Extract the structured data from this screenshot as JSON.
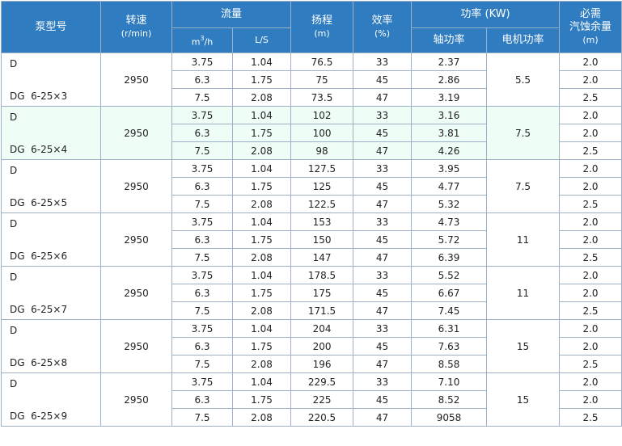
{
  "header": {
    "pump_model": "泵型号",
    "speed": "转速",
    "speed_unit": "(r/min)",
    "flow": "流量",
    "flow_m3h": {
      "base": "m",
      "exp": "3",
      "rest": "/h"
    },
    "flow_ls": "L/S",
    "head": "扬程",
    "head_unit": "(m)",
    "efficiency": "效率",
    "efficiency_unit": "(%)",
    "power": "功率 (KW)",
    "shaft_power": "轴功率",
    "motor_power": "电机功率",
    "npsh_1": "必需",
    "npsh_2": "汽蚀余量",
    "npsh_unit": "(m)"
  },
  "groups": [
    {
      "model_1": "D",
      "model_2": "DG  6-25×3",
      "speed": "2950",
      "motor": "5.5",
      "rows": [
        [
          "3.75",
          "1.04",
          "76.5",
          "33",
          "2.37",
          "2.0"
        ],
        [
          "6.3",
          "1.75",
          "75",
          "45",
          "2.86",
          "2.0"
        ],
        [
          "7.5",
          "2.08",
          "73.5",
          "47",
          "3.19",
          "2.5"
        ]
      ]
    },
    {
      "model_1": "D",
      "model_2": "DG  6-25×4",
      "speed": "2950",
      "motor": "7.5",
      "rows": [
        [
          "3.75",
          "1.04",
          "102",
          "33",
          "3.16",
          "2.0"
        ],
        [
          "6.3",
          "1.75",
          "100",
          "45",
          "3.81",
          "2.0"
        ],
        [
          "7.5",
          "2.08",
          "98",
          "47",
          "4.26",
          "2.5"
        ]
      ]
    },
    {
      "model_1": "D",
      "model_2": "DG  6-25×5",
      "speed": "2950",
      "motor": "7.5",
      "rows": [
        [
          "3.75",
          "1.04",
          "127.5",
          "33",
          "3.95",
          "2.0"
        ],
        [
          "6.3",
          "1.75",
          "125",
          "45",
          "4.77",
          "2.0"
        ],
        [
          "7.5",
          "2.08",
          "122.5",
          "47",
          "5.32",
          "2.5"
        ]
      ]
    },
    {
      "model_1": "D",
      "model_2": "DG  6-25×6",
      "speed": "2950",
      "motor": "11",
      "rows": [
        [
          "3.75",
          "1.04",
          "153",
          "33",
          "4.73",
          "2.0"
        ],
        [
          "6.3",
          "1.75",
          "150",
          "45",
          "5.72",
          "2.0"
        ],
        [
          "7.5",
          "2.08",
          "147",
          "47",
          "6.39",
          "2.5"
        ]
      ]
    },
    {
      "model_1": "D",
      "model_2": "DG  6-25×7",
      "speed": "2950",
      "motor": "11",
      "rows": [
        [
          "3.75",
          "1.04",
          "178.5",
          "33",
          "5.52",
          "2.0"
        ],
        [
          "6.3",
          "1.75",
          "175",
          "45",
          "6.67",
          "2.0"
        ],
        [
          "7.5",
          "2.08",
          "171.5",
          "47",
          "7.45",
          "2.5"
        ]
      ]
    },
    {
      "model_1": "D",
      "model_2": "DG  6-25×8",
      "speed": "2950",
      "motor": "15",
      "rows": [
        [
          "3.75",
          "1.04",
          "204",
          "33",
          "6.31",
          "2.0"
        ],
        [
          "6.3",
          "1.75",
          "200",
          "45",
          "7.63",
          "2.0"
        ],
        [
          "7.5",
          "2.08",
          "196",
          "47",
          "8.58",
          "2.5"
        ]
      ]
    },
    {
      "model_1": "D",
      "model_2": "DG  6-25×9",
      "speed": "2950",
      "motor": "15",
      "rows": [
        [
          "3.75",
          "1.04",
          "229.5",
          "33",
          "7.10",
          "2.0"
        ],
        [
          "6.3",
          "1.75",
          "225",
          "45",
          "8.52",
          "2.0"
        ],
        [
          "7.5",
          "2.08",
          "220.5",
          "47",
          "9058",
          "2.5"
        ]
      ]
    }
  ]
}
